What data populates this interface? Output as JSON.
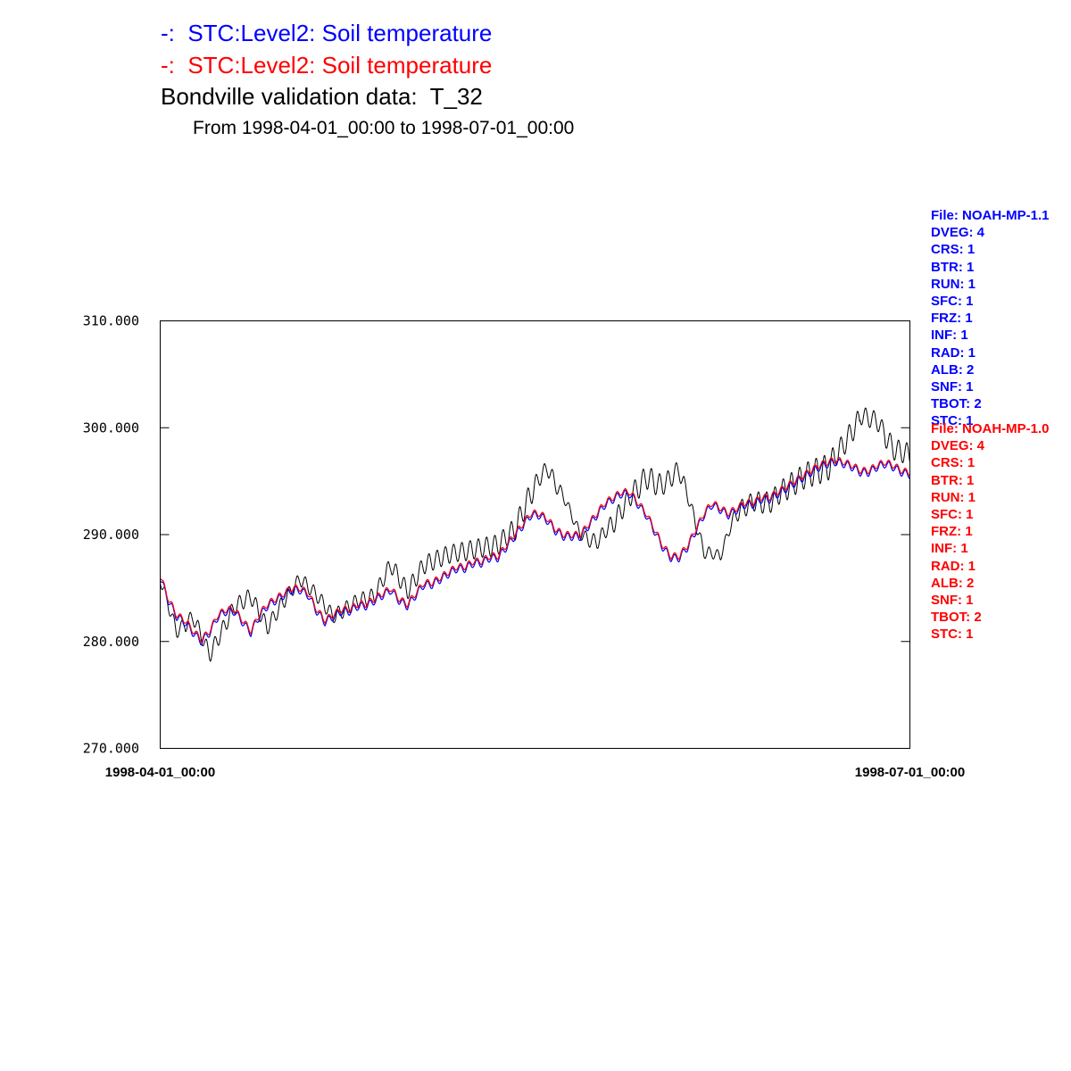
{
  "chart_data": {
    "type": "line",
    "title_lines": [
      {
        "text": "-:  STC:Level2: Soil temperature",
        "color": "#0000ff"
      },
      {
        "text": "-:  STC:Level2: Soil temperature",
        "color": "#ff0000"
      },
      {
        "text": "Bondville validation data:  T_32",
        "color": "#000000"
      }
    ],
    "subtitle": "From 1998-04-01_00:00 to 1998-07-01_00:00",
    "x_range": [
      "1998-04-01_00:00",
      "1998-07-01_00:00"
    ],
    "x_tick_labels": [
      "1998-04-01_00:00",
      "1998-07-01_00:00"
    ],
    "ylim": [
      270,
      310
    ],
    "y_ticks": [
      270,
      280,
      290,
      300,
      310
    ],
    "y_tick_labels": [
      "270.000",
      "280.000",
      "290.000",
      "300.000",
      "310.000"
    ],
    "grid": false,
    "x_unit": "days",
    "series": [
      {
        "color": "#000000",
        "diurnal_amplitude": [
          1.2,
          1.4,
          1.5,
          1.5,
          1.4,
          1.3,
          1.3,
          1.4,
          1.5,
          1.6,
          1.7,
          1.7,
          1.8,
          1.9,
          2.2,
          1.5,
          1.0,
          1.4,
          1.9,
          2.2,
          1.8,
          1.2,
          1.0,
          1.8,
          2.0,
          2.3,
          2.5,
          2.1,
          1.7,
          2.0
        ],
        "daily_max_trend": {
          "x": [
            0,
            2,
            4,
            6,
            9,
            11,
            13,
            15,
            17,
            19,
            21,
            24,
            26,
            28,
            30,
            32,
            35,
            38,
            41,
            43,
            45,
            47,
            49,
            51,
            53,
            55,
            57,
            59,
            61,
            63,
            66,
            68,
            70,
            72,
            74,
            76,
            79,
            81,
            83,
            85,
            87,
            89,
            91
          ],
          "y": [
            286.5,
            281.5,
            283.0,
            279.5,
            284.0,
            285.0,
            282.0,
            284.5,
            286.5,
            285.0,
            283.0,
            284.5,
            285.0,
            288.0,
            285.5,
            288.0,
            289.0,
            289.5,
            290.0,
            291.5,
            295.0,
            297.0,
            294.0,
            290.5,
            290.0,
            292.0,
            294.5,
            296.5,
            295.5,
            297.0,
            289.0,
            288.5,
            293.0,
            294.0,
            294.0,
            295.5,
            297.0,
            297.5,
            299.5,
            302.0,
            301.5,
            299.0,
            298.5
          ]
        }
      },
      {
        "color": "#ff0000",
        "x": [
          0,
          1,
          2,
          3,
          4,
          5,
          6,
          7,
          8,
          9,
          10,
          11,
          12,
          13,
          14,
          15,
          16,
          17,
          18,
          19,
          20,
          21,
          22,
          23,
          24,
          25,
          26,
          27,
          28,
          29,
          30,
          31,
          32,
          33,
          34,
          35,
          36,
          37,
          38,
          39,
          40,
          41,
          42,
          43,
          44,
          45,
          46,
          47,
          48,
          49,
          50,
          51,
          52,
          53,
          54,
          55,
          56,
          57,
          58,
          59,
          60,
          61,
          62,
          63,
          64,
          65,
          66,
          67,
          68,
          69,
          70,
          71,
          72,
          73,
          74,
          75,
          76,
          77,
          78,
          79,
          80,
          81,
          82,
          83,
          84,
          85,
          86,
          87,
          88,
          89,
          90,
          91
        ],
        "y": [
          286.2,
          284.0,
          282.5,
          282.0,
          281.0,
          280.2,
          281.0,
          282.5,
          283.0,
          283.0,
          282.0,
          281.0,
          282.5,
          283.5,
          284.0,
          284.5,
          285.0,
          285.0,
          284.5,
          283.0,
          282.0,
          282.5,
          283.0,
          283.0,
          283.5,
          283.5,
          284.0,
          284.5,
          285.0,
          284.0,
          283.5,
          284.5,
          285.5,
          285.5,
          286.0,
          286.5,
          287.0,
          287.0,
          287.5,
          287.5,
          288.0,
          288.0,
          289.0,
          290.0,
          291.0,
          292.0,
          292.0,
          291.5,
          290.5,
          290.0,
          290.0,
          290.0,
          291.0,
          292.0,
          293.0,
          293.5,
          294.0,
          294.0,
          293.0,
          292.0,
          290.5,
          289.0,
          288.0,
          288.0,
          289.0,
          290.5,
          292.0,
          293.0,
          292.5,
          292.0,
          292.5,
          293.0,
          293.0,
          293.5,
          293.5,
          294.0,
          294.5,
          295.0,
          295.5,
          296.0,
          296.5,
          296.8,
          297.0,
          296.8,
          296.5,
          296.0,
          296.0,
          296.5,
          296.8,
          296.5,
          296.0,
          295.8
        ]
      },
      {
        "color": "#0000ff",
        "offset": -0.2
      }
    ]
  },
  "info_blue": [
    "File: NOAH-MP-1.1",
    "DVEG: 4",
    "CRS: 1",
    "BTR: 1",
    "RUN: 1",
    "SFC: 1",
    "FRZ: 1",
    "INF: 1",
    "RAD: 1",
    "ALB: 2",
    "SNF: 1",
    "TBOT: 2",
    "STC: 1"
  ],
  "info_red": [
    "File: NOAH-MP-1.0",
    "DVEG: 4",
    "CRS: 1",
    "BTR: 1",
    "RUN: 1",
    "SFC: 1",
    "FRZ: 1",
    "INF: 1",
    "RAD: 1",
    "ALB: 2",
    "SNF: 1",
    "TBOT: 2",
    "STC: 1"
  ]
}
